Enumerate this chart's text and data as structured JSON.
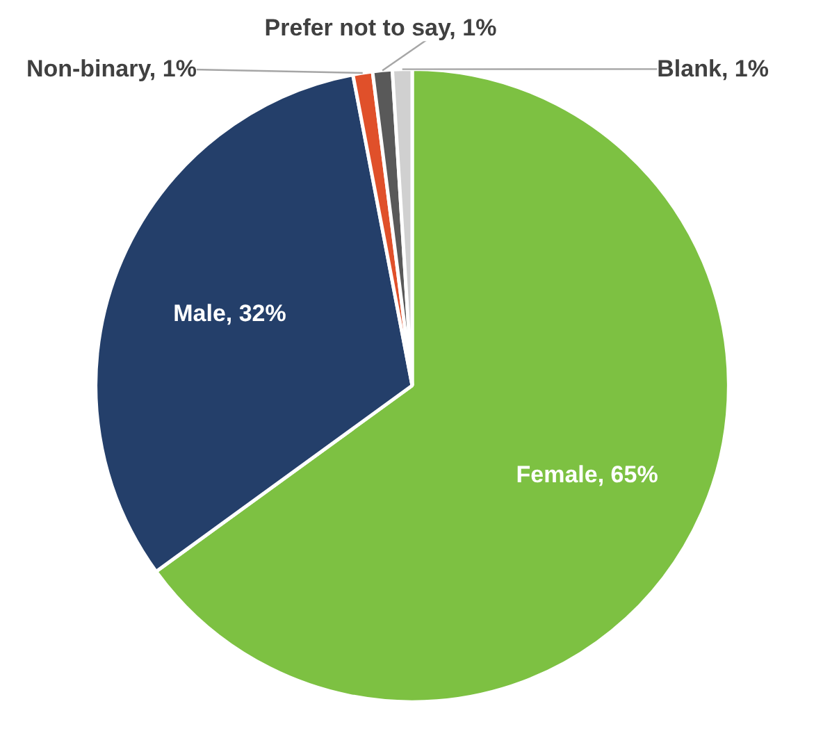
{
  "chart_data": {
    "type": "pie",
    "categories": [
      "Female",
      "Male",
      "Non-binary",
      "Prefer not to say",
      "Blank"
    ],
    "values": [
      65,
      32,
      1,
      1,
      1
    ],
    "colors": [
      "#7dc142",
      "#243f6a",
      "#e0502a",
      "#595959",
      "#d0d0d0"
    ],
    "value_labels": [
      "65%",
      "32%",
      "1%",
      "1%",
      "1%"
    ],
    "legend": false
  }
}
